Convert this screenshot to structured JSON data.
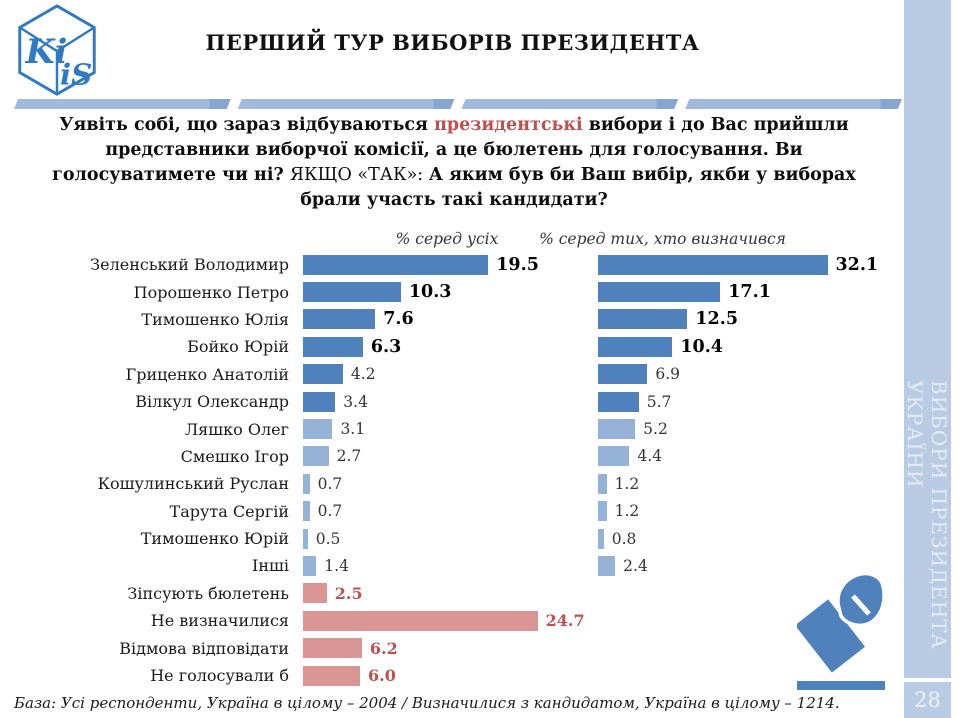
{
  "logo": {
    "letters_left": "Ki",
    "letters_right": "iS"
  },
  "header": {
    "title": "ПЕРШИЙ ТУР ВИБОРІВ ПРЕЗИДЕНТА"
  },
  "question": {
    "part1": "Уявіть собі, що зараз відбуваються ",
    "highlight": "президентські",
    "part2": " вибори і до Вас прийшли представники виборчої комісії, а це бюлетень для голосування. Ви голосуватимете чи ні? ",
    "plain": "ЯКЩО «ТАК»: ",
    "part3": "А яким був би Ваш вибір, якби у виборах брали участь такі кандидати?"
  },
  "chart_data": {
    "type": "bar",
    "orientation": "horizontal",
    "grid": false,
    "legend_position": "column-headers",
    "categories": [
      "Зеленський Володимир",
      "Порошенко Петро",
      "Тимошенко Юлія",
      "Бойко Юрій",
      "Гриценко Анатолій",
      "Вілкул Олександр",
      "Ляшко Олег",
      "Смешко Ігор",
      "Кошулинський Руслан",
      "Тарута Сергій",
      "Тимошенко Юрій",
      "Інші",
      "Зіпсують бюлетень",
      "Не визначилися",
      "Відмова відповідати",
      "Не голосували б"
    ],
    "series": [
      {
        "name": "% серед усіх",
        "values": [
          "19.5",
          "10.3",
          "7.6",
          "6.3",
          "4.2",
          "3.4",
          "3.1",
          "2.7",
          "0.7",
          "0.7",
          "0.5",
          "1.4",
          "2.5",
          "24.7",
          "6.2",
          "6.0"
        ]
      },
      {
        "name": "% серед тих, хто визначився",
        "values": [
          "32.1",
          "17.1",
          "12.5",
          "10.4",
          "6.9",
          "5.7",
          "5.2",
          "4.4",
          "1.2",
          "1.2",
          "0.8",
          "2.4",
          null,
          null,
          null,
          null
        ]
      }
    ],
    "colors": {
      "main_blue": "#4f81bd",
      "light_blue": "#95b3d7",
      "salmon": "#d99694",
      "accent_red": "#c0504d"
    },
    "style_notes": "rows 1-6 main blue, rows 7-12 light blue, rows 13-16 salmon; top-4 values bold black; salmon values bold dark-red"
  },
  "sidebar": {
    "vertical_text": "ВИБОРИ ПРЕЗИДЕНТА УКРАЇНИ",
    "page_number": "28"
  },
  "footer": {
    "base_text": "База: Усі респонденти, Україна в цілому – 2004 /  Визначилися з кандидатом, Україна в цілому – 1214."
  }
}
